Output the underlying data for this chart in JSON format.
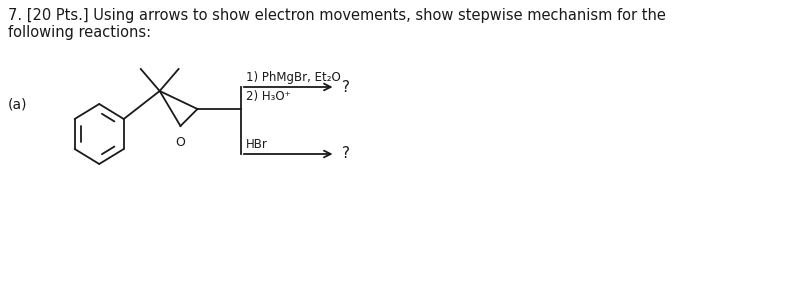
{
  "title_text": "7. [20 Pts.] Using arrows to show electron movements, show stepwise mechanism for the\nfollowing reactions:",
  "label_a": "(a)",
  "reagent1_line1": "1) PhMgBr, Et₂O",
  "reagent1_line2": "2) H₃O⁺",
  "reagent2": "HBr",
  "question_mark": "?",
  "bg_color": "#ffffff",
  "line_color": "#1a1a1a",
  "font_size_title": 10.5,
  "font_size_label": 10,
  "font_size_reagent": 8.5,
  "font_size_qmark": 11
}
